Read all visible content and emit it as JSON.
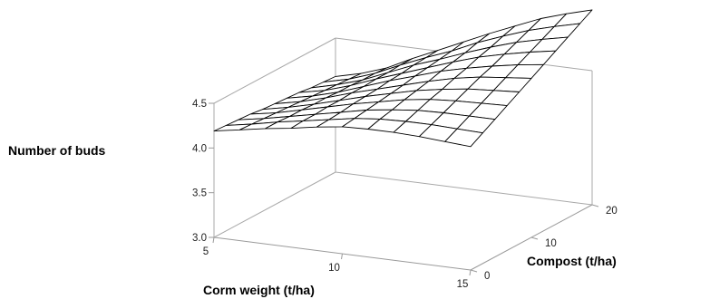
{
  "chart_data": {
    "type": "surface",
    "title": "",
    "zlabel": "Number of buds",
    "xlabel": "Corm weight (t/ha)",
    "ylabel": "Compost (t/ha)",
    "xlim": [
      5,
      15
    ],
    "ylim": [
      0,
      20
    ],
    "zlim": [
      3.0,
      4.5
    ],
    "x_ticks": [
      "5",
      "10",
      "15"
    ],
    "y_ticks": [
      "0",
      "10",
      "20"
    ],
    "z_ticks": [
      "3.0",
      "3.5",
      "4.0",
      "4.5"
    ],
    "grid": false,
    "x": [
      5,
      6,
      7,
      8,
      9,
      10,
      11,
      12,
      13,
      14,
      15
    ],
    "y": [
      0,
      2,
      4,
      6,
      8,
      10,
      12,
      14,
      16,
      18,
      20
    ],
    "z_rows_by_compost": [
      [
        4.19,
        4.24,
        4.29,
        4.33,
        4.38,
        4.42,
        4.43,
        4.43,
        4.42,
        4.4,
        4.38
      ],
      [
        4.18,
        4.23,
        4.29,
        4.34,
        4.39,
        4.44,
        4.47,
        4.48,
        4.48,
        4.47,
        4.46
      ],
      [
        4.17,
        4.22,
        4.28,
        4.34,
        4.4,
        4.46,
        4.5,
        4.53,
        4.54,
        4.54,
        4.54
      ],
      [
        4.16,
        4.21,
        4.28,
        4.35,
        4.42,
        4.48,
        4.54,
        4.58,
        4.6,
        4.61,
        4.62
      ],
      [
        4.14,
        4.2,
        4.27,
        4.35,
        4.43,
        4.5,
        4.57,
        4.62,
        4.66,
        4.68,
        4.7
      ],
      [
        4.13,
        4.19,
        4.27,
        4.36,
        4.44,
        4.52,
        4.6,
        4.67,
        4.72,
        4.75,
        4.78
      ],
      [
        4.12,
        4.18,
        4.26,
        4.36,
        4.46,
        4.55,
        4.64,
        4.71,
        4.77,
        4.82,
        4.86
      ],
      [
        4.11,
        4.17,
        4.26,
        4.37,
        4.47,
        4.57,
        4.67,
        4.76,
        4.83,
        4.89,
        4.94
      ],
      [
        4.09,
        4.16,
        4.25,
        4.37,
        4.49,
        4.59,
        4.7,
        4.8,
        4.89,
        4.96,
        5.02
      ],
      [
        4.08,
        4.15,
        4.25,
        4.38,
        4.5,
        4.61,
        4.74,
        4.85,
        4.95,
        5.03,
        5.1
      ],
      [
        4.07,
        4.14,
        4.24,
        4.38,
        4.51,
        4.64,
        4.77,
        4.89,
        5.01,
        5.1,
        5.18
      ]
    ]
  }
}
